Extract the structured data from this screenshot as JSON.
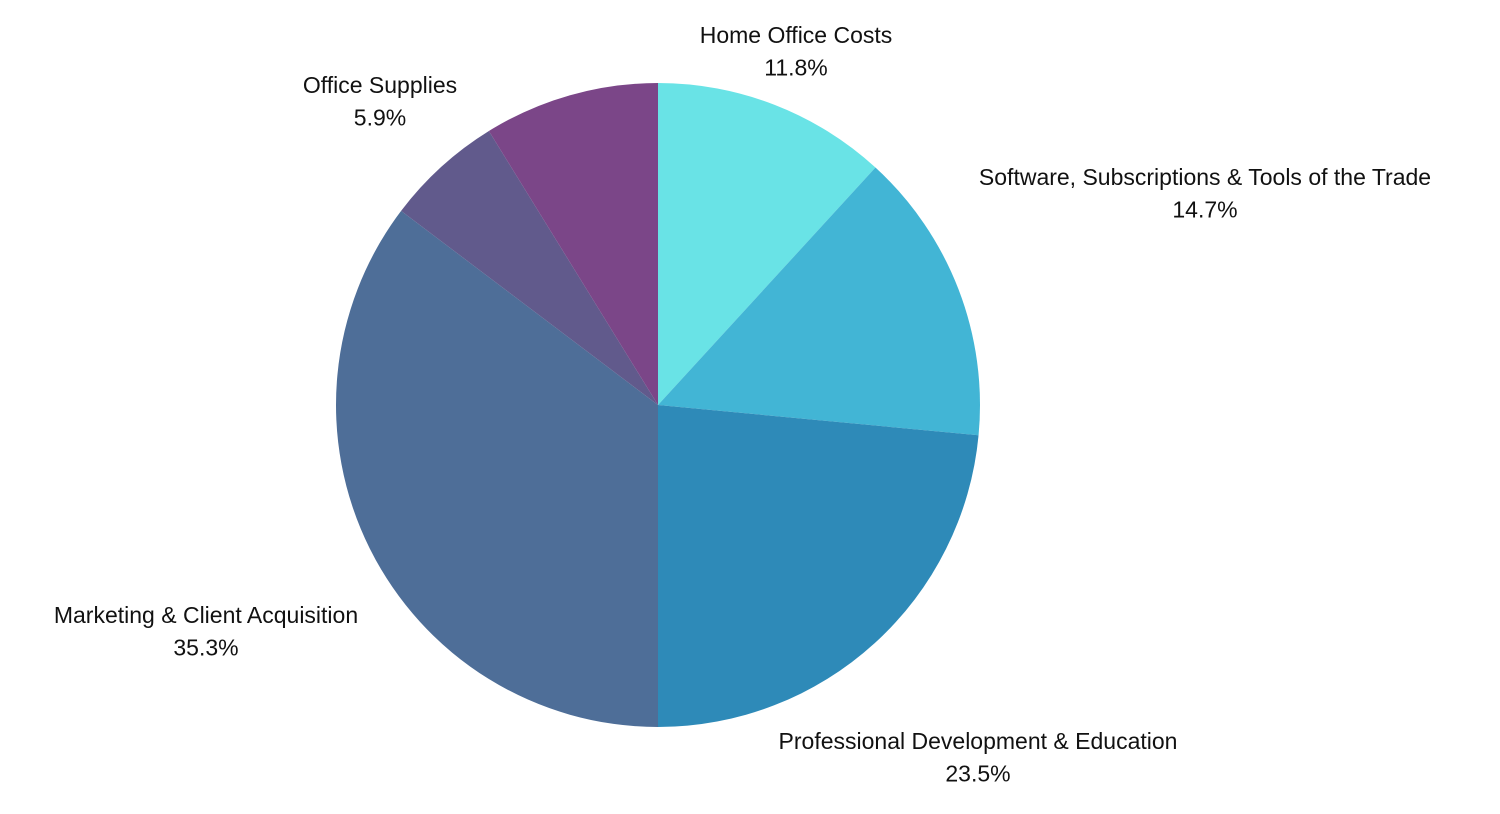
{
  "chart_data": {
    "type": "pie",
    "title": "",
    "slices": [
      {
        "label": "Home Office Costs",
        "value": 11.8,
        "value_label": "11.8%",
        "color": "#69e3e6"
      },
      {
        "label": "Software, Subscriptions & Tools of the Trade",
        "value": 14.7,
        "value_label": "14.7%",
        "color": "#42b5d5"
      },
      {
        "label": "Professional Development & Education",
        "value": 23.5,
        "value_label": "23.5%",
        "color": "#2e8ab8"
      },
      {
        "label": "Marketing & Client Acquisition",
        "value": 35.3,
        "value_label": "35.3%",
        "color": "#4e6e98"
      },
      {
        "label": "Office Supplies",
        "value": 5.9,
        "value_label": "5.9%",
        "color": "#615a8c"
      },
      {
        "label": "",
        "value": 8.8,
        "value_label": "",
        "color": "#7b4688"
      }
    ],
    "start_angle": "12 o'clock",
    "direction": "clockwise",
    "legend": "none (labels outside slices)"
  }
}
